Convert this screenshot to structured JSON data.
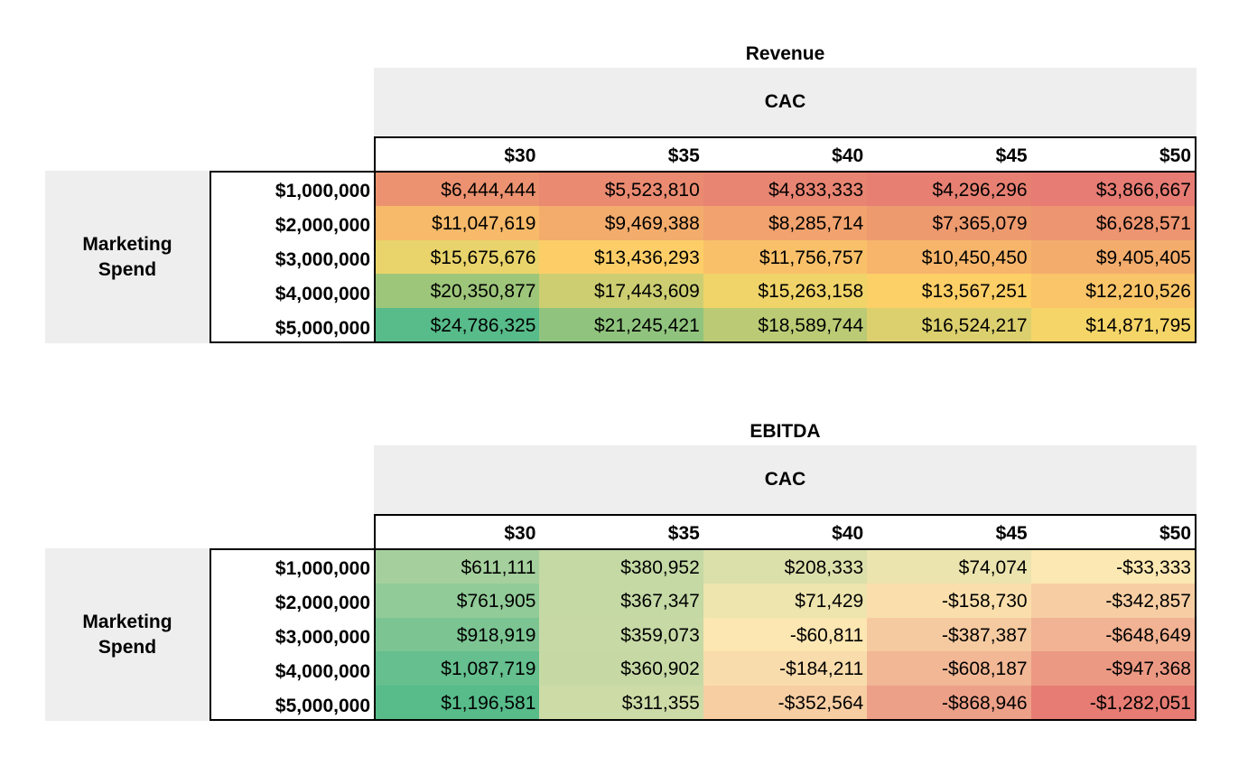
{
  "chart_data": [
    {
      "type": "heatmap",
      "title": "Revenue",
      "column_header": "CAC",
      "row_header": "Marketing Spend",
      "columns": [
        "$30",
        "$35",
        "$40",
        "$45",
        "$50"
      ],
      "rows": [
        "$1,000,000",
        "$2,000,000",
        "$3,000,000",
        "$4,000,000",
        "$5,000,000"
      ],
      "values": [
        [
          6444444,
          5523810,
          4833333,
          4296296,
          3866667
        ],
        [
          11047619,
          9469388,
          8285714,
          7365079,
          6628571
        ],
        [
          15675676,
          13436293,
          11756757,
          10450450,
          9405405
        ],
        [
          20350877,
          17443609,
          15263158,
          13567251,
          12210526
        ],
        [
          24786325,
          21245421,
          18589744,
          16524217,
          14871795
        ]
      ],
      "labels": [
        [
          "$6,444,444",
          "$5,523,810",
          "$4,833,333",
          "$4,296,296",
          "$3,866,667"
        ],
        [
          "$11,047,619",
          "$9,469,388",
          "$8,285,714",
          "$7,365,079",
          "$6,628,571"
        ],
        [
          "$15,675,676",
          "$13,436,293",
          "$11,756,757",
          "$10,450,450",
          "$9,405,405"
        ],
        [
          "$20,350,877",
          "$17,443,609",
          "$15,263,158",
          "$13,567,251",
          "$12,210,526"
        ],
        [
          "$24,786,325",
          "$21,245,421",
          "$18,589,744",
          "$16,524,217",
          "$14,871,795"
        ]
      ],
      "color_scale": {
        "low": "#e67c73",
        "mid": "#ffd666",
        "high": "#57bb8a"
      }
    },
    {
      "type": "heatmap",
      "title": "EBITDA",
      "column_header": "CAC",
      "row_header": "Marketing Spend",
      "columns": [
        "$30",
        "$35",
        "$40",
        "$45",
        "$50"
      ],
      "rows": [
        "$1,000,000",
        "$2,000,000",
        "$3,000,000",
        "$4,000,000",
        "$5,000,000"
      ],
      "values": [
        [
          611111,
          380952,
          208333,
          74074,
          -33333
        ],
        [
          761905,
          367347,
          71429,
          -158730,
          -342857
        ],
        [
          918919,
          359073,
          -60811,
          -387387,
          -648649
        ],
        [
          1087719,
          360902,
          -184211,
          -608187,
          -947368
        ],
        [
          1196581,
          311355,
          -352564,
          -868946,
          -1282051
        ]
      ],
      "labels": [
        [
          "$611,111",
          "$380,952",
          "$208,333",
          "$74,074",
          "-$33,333"
        ],
        [
          "$761,905",
          "$367,347",
          "$71,429",
          "-$158,730",
          "-$342,857"
        ],
        [
          "$918,919",
          "$359,073",
          "-$60,811",
          "-$387,387",
          "-$648,649"
        ],
        [
          "$1,087,719",
          "$360,902",
          "-$184,211",
          "-$608,187",
          "-$947,368"
        ],
        [
          "$1,196,581",
          "$311,355",
          "-$352,564",
          "-$868,946",
          "-$1,282,051"
        ]
      ],
      "color_scale": {
        "low": "#e67c73",
        "mid": "#fce8b2",
        "high": "#57bb8a"
      }
    }
  ]
}
